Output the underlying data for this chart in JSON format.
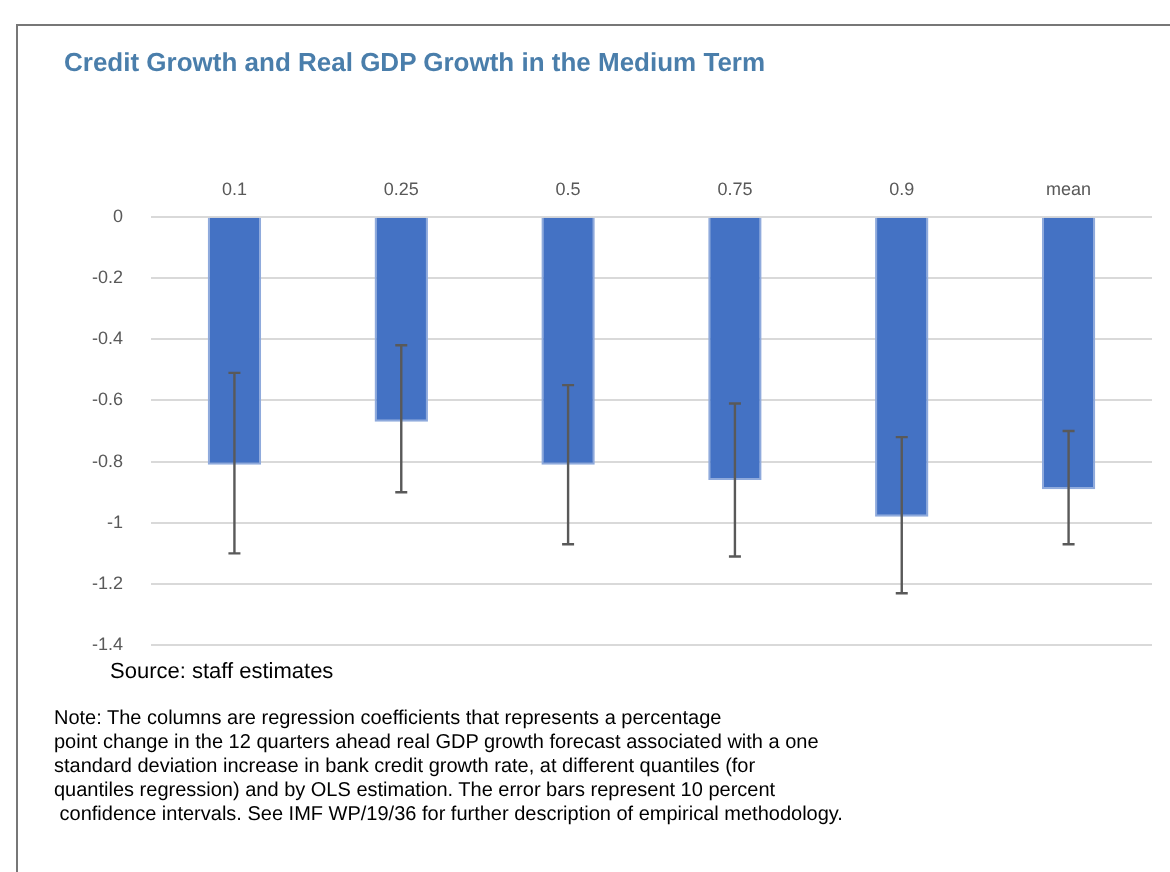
{
  "chart_data": {
    "type": "bar",
    "title": "Credit Growth and Real GDP Growth in the Medium Term",
    "categories": [
      "0.1",
      "0.25",
      "0.5",
      "0.75",
      "0.9",
      "mean"
    ],
    "values": [
      -0.81,
      -0.67,
      -0.81,
      -0.86,
      -0.98,
      -0.89
    ],
    "errors": [
      [
        -1.1,
        -0.51
      ],
      [
        -0.9,
        -0.42
      ],
      [
        -1.07,
        -0.55
      ],
      [
        -1.11,
        -0.61
      ],
      [
        -1.23,
        -0.72
      ],
      [
        -1.07,
        -0.7
      ]
    ],
    "color": "#4472c4",
    "ylim": [
      -1.4,
      0
    ],
    "yticks": [
      0,
      -0.2,
      -0.4,
      -0.6,
      -0.8,
      -1,
      -1.2,
      -1.4
    ],
    "grid": "y",
    "annotations": [
      "Source: staff estimates",
      "Note: The columns are regression coefficients that represents a percentage\npoint change in the 12 quarters ahead real GDP growth forecast associated with a one\nstandard deviation increase in bank credit growth rate, at different quantiles (for\nquantiles regression) and by OLS estimation. The error bars represent 10 percent\n confidence intervals. See IMF WP/19/36 for further description of empirical methodology."
    ]
  }
}
